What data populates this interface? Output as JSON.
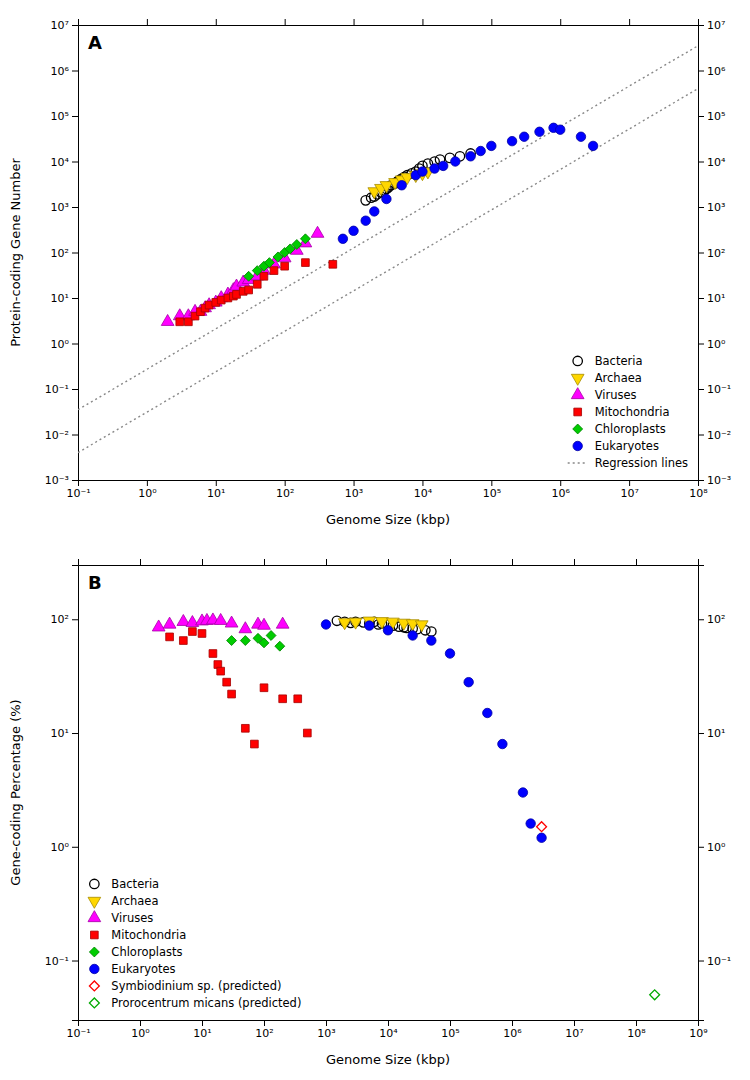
{
  "chart_data": [
    {
      "type": "scatter",
      "title": "A",
      "x_label": "Genome Size (kbp)",
      "y_label": "Protein-coding Gene Number",
      "log": true,
      "grid": false,
      "legend": "lower right",
      "xlim": [
        0.1,
        100000000
      ],
      "ylim": [
        0.001,
        10000000
      ],
      "xticks": [
        {
          "value": 0.1,
          "label": "10⁻¹"
        },
        {
          "value": 1,
          "label": "10⁰"
        },
        {
          "value": 10,
          "label": "10¹"
        },
        {
          "value": 100,
          "label": "10²"
        },
        {
          "value": 1000,
          "label": "10³"
        },
        {
          "value": 10000,
          "label": "10⁴"
        },
        {
          "value": 100000,
          "label": "10⁵"
        },
        {
          "value": 1000000,
          "label": "10⁶"
        },
        {
          "value": 10000000,
          "label": "10⁷"
        },
        {
          "value": 100000000,
          "label": "10⁸"
        }
      ],
      "yticks": [
        {
          "value": 0.001,
          "label": "10⁻³"
        },
        {
          "value": 0.01,
          "label": "10⁻²"
        },
        {
          "value": 0.1,
          "label": "10⁻¹"
        },
        {
          "value": 1,
          "label": "10⁰"
        },
        {
          "value": 10,
          "label": "10¹"
        },
        {
          "value": 100,
          "label": "10²"
        },
        {
          "value": 1000,
          "label": "10³"
        },
        {
          "value": 10000,
          "label": "10⁴"
        },
        {
          "value": 100000,
          "label": "10⁵"
        },
        {
          "value": 1000000,
          "label": "10⁶"
        },
        {
          "value": 10000000,
          "label": "10⁷"
        }
      ],
      "series": [
        {
          "name": "Bacteria",
          "color": "black",
          "marker": "circle-open",
          "x": [
            1500,
            1800,
            2000,
            2200,
            2500,
            2800,
            3000,
            3200,
            3500,
            4000,
            4200,
            4500,
            5000,
            5500,
            6000,
            7000,
            8000,
            9000,
            10000,
            12000,
            15000,
            18000,
            25000,
            35000,
            50000
          ],
          "values": [
            1400,
            1600,
            1700,
            1900,
            2100,
            2300,
            2500,
            2700,
            3000,
            3300,
            3500,
            3800,
            4200,
            4600,
            5000,
            5500,
            6000,
            7000,
            8000,
            9000,
            10000,
            11000,
            12000,
            13000,
            15000
          ]
        },
        {
          "name": "Archaea",
          "color": "#FFD700",
          "marker": "triangle-down",
          "x": [
            2000,
            2500,
            3000,
            4000,
            5000,
            6000,
            8000,
            10000,
            12000
          ],
          "values": [
            2200,
            2600,
            3000,
            3500,
            4000,
            4500,
            5000,
            5500,
            6000
          ]
        },
        {
          "name": "Viruses",
          "color": "#FF00FF",
          "marker": "triangle-up",
          "x": [
            2,
            3,
            4,
            5,
            6,
            7,
            8,
            10,
            12,
            15,
            18,
            20,
            25,
            30,
            40,
            50,
            70,
            100,
            150,
            200,
            300
          ],
          "values": [
            3,
            4,
            4,
            5,
            5,
            6,
            7,
            8,
            10,
            12,
            15,
            18,
            22,
            25,
            30,
            40,
            55,
            75,
            110,
            160,
            260
          ]
        },
        {
          "name": "Mitochondria",
          "color": "red",
          "marker": "square",
          "x": [
            3,
            4,
            5,
            6,
            7,
            8,
            10,
            12,
            15,
            18,
            20,
            25,
            30,
            40,
            50,
            70,
            100,
            200,
            500
          ],
          "values": [
            3,
            3,
            4,
            5,
            6,
            7,
            8,
            9,
            10,
            11,
            12,
            14,
            15,
            20,
            30,
            40,
            50,
            60,
            55
          ]
        },
        {
          "name": "Chloroplasts",
          "color": "#00CC00",
          "marker": "diamond",
          "x": [
            30,
            40,
            50,
            60,
            80,
            100,
            120,
            150,
            200
          ],
          "values": [
            30,
            40,
            50,
            60,
            80,
            100,
            120,
            150,
            200
          ]
        },
        {
          "name": "Eukaryotes",
          "color": "blue",
          "marker": "circle",
          "x": [
            700,
            1000,
            1500,
            2000,
            3000,
            5000,
            8000,
            10000,
            15000,
            20000,
            30000,
            50000,
            70000,
            100000,
            200000,
            300000,
            500000,
            800000,
            1000000,
            2000000,
            3000000
          ],
          "values": [
            200,
            300,
            500,
            800,
            1500,
            3000,
            5000,
            6000,
            7000,
            8000,
            10000,
            13000,
            17000,
            22000,
            28000,
            35000,
            45000,
            55000,
            50000,
            35000,
            22000
          ]
        },
        {
          "name": "Regression lines",
          "type": "line",
          "color": "#888888",
          "line_style": "dotted",
          "x": [
            0.1,
            100000000,
            null,
            0.1,
            100000000
          ],
          "values": [
            0.035,
            3500000,
            null,
            0.004,
            400000
          ]
        }
      ]
    },
    {
      "type": "scatter",
      "title": "B",
      "x_label": "Genome Size (kbp)",
      "y_label": "Gene-coding Percentage (%)",
      "log": true,
      "grid": false,
      "legend": "lower left",
      "xlim": [
        0.1,
        1000000000
      ],
      "ylim": [
        0.03,
        300
      ],
      "xticks": [
        {
          "value": 0.1,
          "label": "10⁻¹"
        },
        {
          "value": 1,
          "label": "10⁰"
        },
        {
          "value": 10,
          "label": "10¹"
        },
        {
          "value": 100,
          "label": "10²"
        },
        {
          "value": 1000,
          "label": "10³"
        },
        {
          "value": 10000,
          "label": "10⁴"
        },
        {
          "value": 100000,
          "label": "10⁵"
        },
        {
          "value": 1000000,
          "label": "10⁶"
        },
        {
          "value": 10000000,
          "label": "10⁷"
        },
        {
          "value": 100000000,
          "label": "10⁸"
        },
        {
          "value": 1000000000,
          "label": "10⁹"
        }
      ],
      "yticks": [
        {
          "value": 0.1,
          "label": "10⁻¹"
        },
        {
          "value": 1,
          "label": "10⁰"
        },
        {
          "value": 10,
          "label": "10¹"
        },
        {
          "value": 100,
          "label": "10²"
        }
      ],
      "series": [
        {
          "name": "Bacteria",
          "color": "black",
          "marker": "circle-open",
          "x": [
            1500,
            2000,
            2500,
            3000,
            4000,
            5000,
            6000,
            7000,
            8000,
            10000,
            12000,
            15000,
            18000,
            20000,
            25000,
            30000,
            40000,
            50000
          ],
          "values": [
            97,
            95,
            93,
            95,
            94,
            92,
            95,
            90,
            92,
            90,
            88,
            86,
            85,
            84,
            83,
            82,
            80,
            78
          ]
        },
        {
          "name": "Archaea",
          "color": "#FFD700",
          "marker": "triangle-down",
          "x": [
            2000,
            3000,
            5000,
            8000,
            12000,
            18000,
            25000,
            35000
          ],
          "values": [
            94,
            95,
            97,
            96,
            95,
            93,
            92,
            90
          ]
        },
        {
          "name": "Viruses",
          "color": "#FF00FF",
          "marker": "triangle-up",
          "x": [
            2,
            3,
            5,
            7,
            10,
            12,
            15,
            20,
            30,
            50,
            80,
            100,
            200
          ],
          "values": [
            85,
            90,
            95,
            93,
            96,
            97,
            98,
            97,
            92,
            82,
            90,
            88,
            90
          ]
        },
        {
          "name": "Mitochondria",
          "color": "red",
          "marker": "square",
          "x": [
            3,
            5,
            7,
            10,
            15,
            18,
            20,
            25,
            30,
            50,
            70,
            100,
            200,
            350,
            500
          ],
          "values": [
            70,
            65,
            78,
            75,
            50,
            40,
            35,
            28,
            22,
            11,
            8,
            25,
            20,
            20,
            10
          ]
        },
        {
          "name": "Chloroplasts",
          "color": "#00CC00",
          "marker": "diamond",
          "x": [
            30,
            50,
            80,
            100,
            130,
            180
          ],
          "values": [
            65,
            65,
            68,
            62,
            72,
            58
          ]
        },
        {
          "name": "Eukaryotes",
          "color": "blue",
          "marker": "circle",
          "x": [
            1000,
            5000,
            10000,
            25000,
            50000,
            100000,
            200000,
            400000,
            700000,
            1500000,
            2000000,
            3000000
          ],
          "values": [
            90,
            88,
            80,
            72,
            65,
            50,
            28,
            15,
            8,
            3,
            1.6,
            1.2
          ]
        },
        {
          "name": "Symbiodinium sp. (predicted)",
          "color": "red",
          "marker": "diamond-open",
          "x": [
            3000000
          ],
          "values": [
            1.5
          ]
        },
        {
          "name": "Prorocentrum micans (predicted)",
          "color": "#00AA00",
          "marker": "diamond-open",
          "x": [
            200000000
          ],
          "values": [
            0.05
          ]
        }
      ]
    }
  ]
}
